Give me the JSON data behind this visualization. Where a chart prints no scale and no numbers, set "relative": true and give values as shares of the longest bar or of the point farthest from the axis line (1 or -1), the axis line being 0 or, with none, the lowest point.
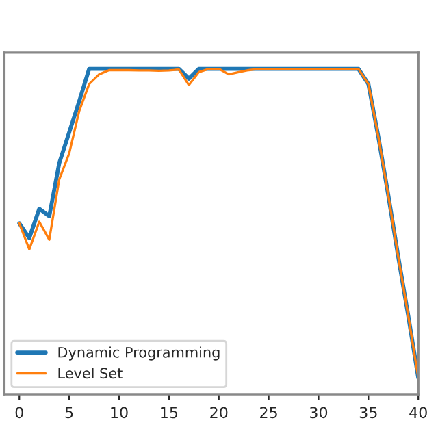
{
  "chart_data": {
    "type": "line",
    "relative": true,
    "x": [
      0,
      1,
      2,
      3,
      4,
      5,
      6,
      7,
      8,
      9,
      10,
      11,
      12,
      13,
      14,
      15,
      16,
      17,
      18,
      19,
      20,
      21,
      22,
      23,
      24,
      25,
      26,
      27,
      28,
      29,
      30,
      31,
      32,
      33,
      34,
      35,
      36,
      37,
      38,
      39,
      40
    ],
    "xlim": [
      -1.5,
      40
    ],
    "xticks": [
      0,
      5,
      10,
      15,
      20,
      25,
      30,
      35,
      40
    ],
    "tick_labels": "x",
    "legend": "bottom left",
    "grid": false,
    "series": [
      {
        "name": "Dynamic Programming",
        "color": "#1f77b4",
        "values": [
          0.525,
          0.48,
          0.57,
          0.547,
          0.71,
          0.805,
          0.9,
          1,
          1,
          1,
          1,
          1,
          1,
          1,
          1,
          1,
          1,
          0.97,
          1,
          1,
          1,
          1,
          1,
          1,
          1,
          1,
          1,
          1,
          1,
          1,
          1,
          1,
          1,
          1,
          1,
          0.953,
          0.79,
          0.61,
          0.42,
          0.24,
          0.05
        ]
      },
      {
        "name": "Level Set",
        "color": "#ff7f0e",
        "values": [
          0.525,
          0.445,
          0.53,
          0.475,
          0.66,
          0.74,
          0.87,
          0.953,
          0.983,
          0.996,
          0.996,
          0.996,
          0.995,
          0.995,
          0.994,
          0.995,
          0.998,
          0.95,
          0.99,
          1,
          1,
          0.983,
          0.99,
          0.996,
          1,
          1,
          1,
          1,
          1,
          1,
          1,
          1,
          1,
          1,
          1,
          0.953,
          0.79,
          0.61,
          0.42,
          0.24,
          0.05
        ]
      }
    ]
  }
}
